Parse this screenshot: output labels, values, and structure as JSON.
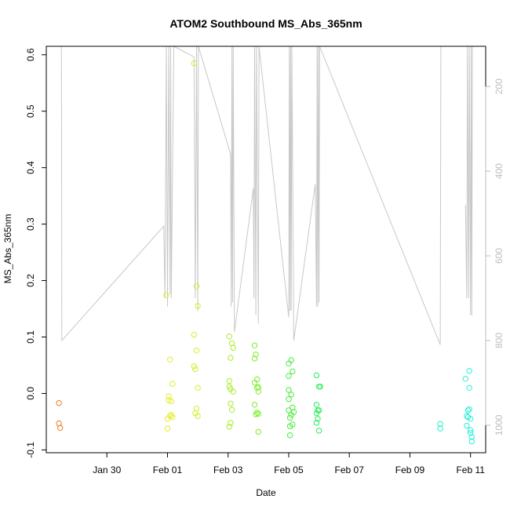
{
  "chart_data": {
    "type": "scatter",
    "title": "ATOM2 Southbound MS_Abs_365nm",
    "xlabel": "Date",
    "ylabel": "MS_Abs_365nm",
    "x_is_date": true,
    "xlim": [
      "2017-01-28T00:00",
      "2017-02-11T12:00"
    ],
    "ylim": [
      -0.105,
      0.615
    ],
    "x_ticks": [
      {
        "date": "2017-01-30T00:00",
        "label": "Jan 30"
      },
      {
        "date": "2017-02-01T00:00",
        "label": "Feb 01"
      },
      {
        "date": "2017-02-03T00:00",
        "label": "Feb 03"
      },
      {
        "date": "2017-02-05T00:00",
        "label": "Feb 05"
      },
      {
        "date": "2017-02-07T00:00",
        "label": "Feb 07"
      },
      {
        "date": "2017-02-09T00:00",
        "label": "Feb 09"
      },
      {
        "date": "2017-02-11T00:00",
        "label": "Feb 11"
      }
    ],
    "y_ticks": [
      -0.1,
      0.0,
      0.1,
      0.2,
      0.3,
      0.4,
      0.5,
      0.6
    ],
    "y_tick_labels": [
      "-0.1",
      "0.0",
      "0.1",
      "0.2",
      "0.3",
      "0.4",
      "0.5",
      "0.6"
    ],
    "right_axis": {
      "ticks": [
        200,
        400,
        600,
        800,
        1000
      ],
      "tick_labels": [
        "200",
        "400",
        "600",
        "800",
        "1000"
      ],
      "range_bottom": 1065,
      "range_top": 105,
      "line_color": "#bdbdbd"
    },
    "secondary_line": {
      "color": "#c8c8c8",
      "points": [
        [
          "2017-01-28T12:00",
          105
        ],
        [
          "2017-01-28T12:20",
          800
        ],
        [
          "2017-01-31T21:00",
          530
        ],
        [
          "2017-01-31T22:00",
          700
        ],
        [
          "2017-01-31T23:00",
          105
        ],
        [
          "2017-02-01T00:00",
          720
        ],
        [
          "2017-02-01T01:00",
          105
        ],
        [
          "2017-02-01T02:00",
          690
        ],
        [
          "2017-02-01T02:30",
          105
        ],
        [
          "2017-02-01T03:00",
          700
        ],
        [
          "2017-02-01T05:00",
          105
        ],
        [
          "2017-02-01T21:00",
          130
        ],
        [
          "2017-02-01T22:00",
          700
        ],
        [
          "2017-02-01T23:00",
          105
        ],
        [
          "2017-02-02T00:00",
          730
        ],
        [
          "2017-02-02T00:30",
          105
        ],
        [
          "2017-02-03T02:00",
          360
        ],
        [
          "2017-02-03T02:30",
          720
        ],
        [
          "2017-02-03T03:00",
          105
        ],
        [
          "2017-02-03T03:30",
          710
        ],
        [
          "2017-02-03T04:00",
          105
        ],
        [
          "2017-02-03T05:00",
          780
        ],
        [
          "2017-02-03T20:00",
          440
        ],
        [
          "2017-02-03T20:30",
          700
        ],
        [
          "2017-02-03T21:00",
          105
        ],
        [
          "2017-02-03T22:00",
          740
        ],
        [
          "2017-02-03T22:30",
          105
        ],
        [
          "2017-02-04T00:00",
          760
        ],
        [
          "2017-02-04T00:30",
          105
        ],
        [
          "2017-02-05T00:00",
          745
        ],
        [
          "2017-02-05T00:30",
          105
        ],
        [
          "2017-02-05T01:00",
          730
        ],
        [
          "2017-02-05T01:30",
          105
        ],
        [
          "2017-02-05T02:00",
          730
        ],
        [
          "2017-02-05T02:30",
          105
        ],
        [
          "2017-02-05T04:00",
          800
        ],
        [
          "2017-02-05T21:00",
          430
        ],
        [
          "2017-02-05T22:00",
          720
        ],
        [
          "2017-02-05T22:30",
          105
        ],
        [
          "2017-02-05T23:00",
          720
        ],
        [
          "2017-02-05T23:30",
          105
        ],
        [
          "2017-02-06T00:00",
          710
        ],
        [
          "2017-02-06T00:30",
          105
        ],
        [
          "2017-02-10T00:00",
          810
        ],
        [
          "2017-02-10T00:30",
          105
        ]
      ],
      "tail_points": [
        [
          "2017-02-10T20:00",
          480
        ],
        [
          "2017-02-10T21:00",
          700
        ],
        [
          "2017-02-10T21:30",
          105
        ],
        [
          "2017-02-10T22:30",
          700
        ],
        [
          "2017-02-10T23:00",
          105
        ],
        [
          "2017-02-11T00:00",
          740
        ],
        [
          "2017-02-11T00:30",
          105
        ],
        [
          "2017-02-11T01:00",
          740
        ],
        [
          "2017-02-11T01:30",
          105
        ]
      ]
    },
    "points": [
      {
        "x": "2017-01-28T10:00",
        "y": -0.017,
        "color": "#f07a1e"
      },
      {
        "x": "2017-01-28T10:00",
        "y": -0.053,
        "color": "#f07a1e"
      },
      {
        "x": "2017-01-28T11:00",
        "y": -0.061,
        "color": "#f07a1e"
      },
      {
        "x": "2017-01-31T23:00",
        "y": 0.174,
        "color": "#e3ee2a"
      },
      {
        "x": "2017-02-01T00:00",
        "y": -0.062,
        "color": "#e3ee2a"
      },
      {
        "x": "2017-02-01T00:00",
        "y": -0.045,
        "color": "#e3ee2a"
      },
      {
        "x": "2017-02-01T01:00",
        "y": -0.005,
        "color": "#e3ee2a"
      },
      {
        "x": "2017-02-01T01:00",
        "y": -0.012,
        "color": "#e3ee2a"
      },
      {
        "x": "2017-02-01T02:00",
        "y": 0.06,
        "color": "#e3ee2a"
      },
      {
        "x": "2017-02-01T02:00",
        "y": -0.04,
        "color": "#e3ee2a"
      },
      {
        "x": "2017-02-01T03:00",
        "y": -0.014,
        "color": "#e3ee2a"
      },
      {
        "x": "2017-02-01T03:00",
        "y": -0.038,
        "color": "#e3ee2a"
      },
      {
        "x": "2017-02-01T04:00",
        "y": 0.017,
        "color": "#e3ee2a"
      },
      {
        "x": "2017-02-01T04:00",
        "y": -0.042,
        "color": "#e3ee2a"
      },
      {
        "x": "2017-02-01T21:00",
        "y": 0.585,
        "color": "#d3ee2a"
      },
      {
        "x": "2017-02-01T21:00",
        "y": 0.104,
        "color": "#d3ee2a"
      },
      {
        "x": "2017-02-01T21:00",
        "y": 0.048,
        "color": "#d3ee2a"
      },
      {
        "x": "2017-02-01T22:00",
        "y": 0.043,
        "color": "#d3ee2a"
      },
      {
        "x": "2017-02-01T22:00",
        "y": -0.035,
        "color": "#d3ee2a"
      },
      {
        "x": "2017-02-01T23:00",
        "y": 0.19,
        "color": "#d3ee2a"
      },
      {
        "x": "2017-02-01T23:00",
        "y": 0.076,
        "color": "#d3ee2a"
      },
      {
        "x": "2017-02-01T23:00",
        "y": -0.027,
        "color": "#d3ee2a"
      },
      {
        "x": "2017-02-02T00:00",
        "y": 0.155,
        "color": "#d3ee2a"
      },
      {
        "x": "2017-02-02T00:00",
        "y": 0.01,
        "color": "#d3ee2a"
      },
      {
        "x": "2017-02-02T00:00",
        "y": -0.04,
        "color": "#d3ee2a"
      },
      {
        "x": "2017-02-03T01:00",
        "y": 0.101,
        "color": "#a8ee2a"
      },
      {
        "x": "2017-02-03T01:00",
        "y": 0.022,
        "color": "#a8ee2a"
      },
      {
        "x": "2017-02-03T01:00",
        "y": 0.012,
        "color": "#a8ee2a"
      },
      {
        "x": "2017-02-03T01:00",
        "y": -0.059,
        "color": "#a8ee2a"
      },
      {
        "x": "2017-02-03T02:00",
        "y": 0.063,
        "color": "#a8ee2a"
      },
      {
        "x": "2017-02-03T02:00",
        "y": 0.008,
        "color": "#a8ee2a"
      },
      {
        "x": "2017-02-03T02:00",
        "y": -0.018,
        "color": "#a8ee2a"
      },
      {
        "x": "2017-02-03T02:00",
        "y": -0.052,
        "color": "#a8ee2a"
      },
      {
        "x": "2017-02-03T03:00",
        "y": 0.089,
        "color": "#a8ee2a"
      },
      {
        "x": "2017-02-03T03:00",
        "y": -0.029,
        "color": "#a8ee2a"
      },
      {
        "x": "2017-02-03T04:00",
        "y": 0.081,
        "color": "#a8ee2a"
      },
      {
        "x": "2017-02-03T04:00",
        "y": 0.003,
        "color": "#a8ee2a"
      },
      {
        "x": "2017-02-03T21:00",
        "y": 0.085,
        "color": "#7cee2a"
      },
      {
        "x": "2017-02-03T21:00",
        "y": 0.062,
        "color": "#7cee2a"
      },
      {
        "x": "2017-02-03T21:00",
        "y": 0.019,
        "color": "#7cee2a"
      },
      {
        "x": "2017-02-03T21:00",
        "y": -0.02,
        "color": "#7cee2a"
      },
      {
        "x": "2017-02-03T22:00",
        "y": 0.069,
        "color": "#7cee2a"
      },
      {
        "x": "2017-02-03T22:00",
        "y": -0.037,
        "color": "#7cee2a"
      },
      {
        "x": "2017-02-03T23:00",
        "y": 0.025,
        "color": "#7cee2a"
      },
      {
        "x": "2017-02-03T23:00",
        "y": 0.01,
        "color": "#7cee2a"
      },
      {
        "x": "2017-02-03T23:00",
        "y": -0.034,
        "color": "#7cee2a"
      },
      {
        "x": "2017-02-04T00:00",
        "y": 0.011,
        "color": "#7cee2a"
      },
      {
        "x": "2017-02-04T00:00",
        "y": 0.003,
        "color": "#7cee2a"
      },
      {
        "x": "2017-02-04T00:00",
        "y": -0.036,
        "color": "#7cee2a"
      },
      {
        "x": "2017-02-04T00:00",
        "y": -0.068,
        "color": "#7cee2a"
      },
      {
        "x": "2017-02-05T00:00",
        "y": 0.053,
        "color": "#48ee3a"
      },
      {
        "x": "2017-02-05T00:00",
        "y": 0.031,
        "color": "#48ee3a"
      },
      {
        "x": "2017-02-05T00:00",
        "y": 0.006,
        "color": "#48ee3a"
      },
      {
        "x": "2017-02-05T00:00",
        "y": -0.01,
        "color": "#48ee3a"
      },
      {
        "x": "2017-02-05T00:00",
        "y": -0.03,
        "color": "#48ee3a"
      },
      {
        "x": "2017-02-05T01:00",
        "y": -0.058,
        "color": "#48ee3a"
      },
      {
        "x": "2017-02-05T01:00",
        "y": -0.074,
        "color": "#48ee3a"
      },
      {
        "x": "2017-02-05T01:00",
        "y": -0.043,
        "color": "#48ee3a"
      },
      {
        "x": "2017-02-05T02:00",
        "y": 0.059,
        "color": "#48ee3a"
      },
      {
        "x": "2017-02-05T02:00",
        "y": -0.002,
        "color": "#48ee3a"
      },
      {
        "x": "2017-02-05T02:00",
        "y": -0.038,
        "color": "#48ee3a"
      },
      {
        "x": "2017-02-05T03:00",
        "y": 0.039,
        "color": "#48ee3a"
      },
      {
        "x": "2017-02-05T03:00",
        "y": -0.025,
        "color": "#48ee3a"
      },
      {
        "x": "2017-02-05T03:00",
        "y": -0.055,
        "color": "#48ee3a"
      },
      {
        "x": "2017-02-05T04:00",
        "y": -0.033,
        "color": "#48ee3a"
      },
      {
        "x": "2017-02-05T22:00",
        "y": 0.032,
        "color": "#2aee5a"
      },
      {
        "x": "2017-02-05T22:00",
        "y": -0.02,
        "color": "#2aee5a"
      },
      {
        "x": "2017-02-05T22:00",
        "y": -0.035,
        "color": "#2aee5a"
      },
      {
        "x": "2017-02-05T22:00",
        "y": -0.052,
        "color": "#2aee5a"
      },
      {
        "x": "2017-02-05T23:00",
        "y": -0.03,
        "color": "#2aee5a"
      },
      {
        "x": "2017-02-05T23:00",
        "y": -0.045,
        "color": "#2aee5a"
      },
      {
        "x": "2017-02-06T00:00",
        "y": 0.012,
        "color": "#2aee5a"
      },
      {
        "x": "2017-02-06T00:00",
        "y": -0.03,
        "color": "#2aee5a"
      },
      {
        "x": "2017-02-06T00:00",
        "y": -0.066,
        "color": "#2aee5a"
      },
      {
        "x": "2017-02-06T01:00",
        "y": 0.012,
        "color": "#2aee5a"
      },
      {
        "x": "2017-02-10T00:00",
        "y": -0.054,
        "color": "#2aeecc"
      },
      {
        "x": "2017-02-10T00:00",
        "y": -0.062,
        "color": "#2aeecc"
      },
      {
        "x": "2017-02-10T20:00",
        "y": 0.026,
        "color": "#2aeed8"
      },
      {
        "x": "2017-02-10T21:00",
        "y": -0.04,
        "color": "#2aeed8"
      },
      {
        "x": "2017-02-10T21:00",
        "y": -0.057,
        "color": "#2aeed8"
      },
      {
        "x": "2017-02-10T22:00",
        "y": -0.042,
        "color": "#2aeed8"
      },
      {
        "x": "2017-02-10T22:00",
        "y": -0.03,
        "color": "#2aeed8"
      },
      {
        "x": "2017-02-10T23:00",
        "y": 0.04,
        "color": "#2aeed8"
      },
      {
        "x": "2017-02-10T23:00",
        "y": 0.01,
        "color": "#2aeed8"
      },
      {
        "x": "2017-02-10T23:00",
        "y": -0.028,
        "color": "#2aeed8"
      },
      {
        "x": "2017-02-11T00:00",
        "y": -0.045,
        "color": "#2aeed8"
      },
      {
        "x": "2017-02-11T00:00",
        "y": -0.065,
        "color": "#2aeed8"
      },
      {
        "x": "2017-02-11T00:00",
        "y": -0.07,
        "color": "#2aeed8"
      },
      {
        "x": "2017-02-11T01:00",
        "y": -0.077,
        "color": "#2aeed8"
      },
      {
        "x": "2017-02-11T01:00",
        "y": -0.085,
        "color": "#2aeed8"
      }
    ]
  }
}
